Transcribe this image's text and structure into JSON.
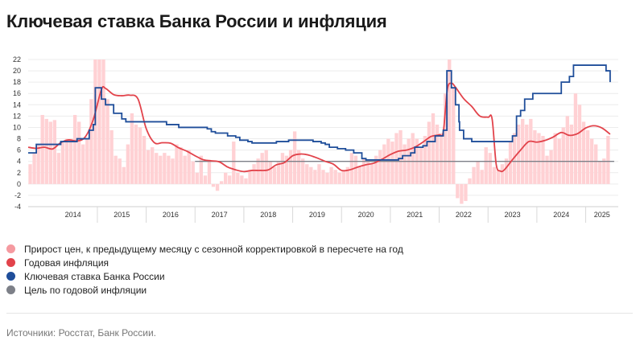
{
  "title": "Ключевая ставка Банка России и инфляция",
  "colors": {
    "mom": "#ffd1d4",
    "yoy": "#e2434b",
    "key_rate": "#1f4e9a",
    "target": "#7d8088",
    "legend_mom": "#f59aa0"
  },
  "legend": [
    {
      "label": "Прирост цен, к предыдущему месяцу с сезонной корректировкой в пересчете на год",
      "color": "#f59aa0"
    },
    {
      "label": "Годовая инфляция",
      "color": "#e2434b"
    },
    {
      "label": "Ключевая ставка Банка России",
      "color": "#1f4e9a"
    },
    {
      "label": "Цель по годовой инфляции",
      "color": "#7d8088"
    }
  ],
  "source": "Источники: Росстат, Банк России.",
  "chart_data": {
    "type": "line",
    "title": "Ключевая ставка Банка России и инфляция",
    "x_period": "2013-08 to 2025-05",
    "x_ticks": [
      "2014",
      "2015",
      "2016",
      "2017",
      "2018",
      "2019",
      "2020",
      "2021",
      "2022",
      "2023",
      "2024",
      "2025"
    ],
    "y_ticks": [
      "-4",
      "-2",
      "0",
      "2",
      "4",
      "6",
      "8",
      "10",
      "12",
      "14",
      "16",
      "18",
      "20",
      "22"
    ],
    "ylim": [
      -4,
      22
    ],
    "grid": "horizontal",
    "series": [
      {
        "name": "Прирост цен, к предыдущему месяцу с сезонной корректировкой в пересчете на год",
        "type": "bar",
        "color": "#ffd1d4",
        "points": [
          [
            "2013-08",
            3.5
          ],
          [
            "2013-09",
            5.5
          ],
          [
            "2013-10",
            7.0
          ],
          [
            "2013-11",
            12.2
          ],
          [
            "2013-12",
            11.5
          ],
          [
            "2014-01",
            11.0
          ],
          [
            "2014-02",
            11.3
          ],
          [
            "2014-03",
            5.5
          ],
          [
            "2014-04",
            7.5
          ],
          [
            "2014-05",
            8.0
          ],
          [
            "2014-06",
            8.0
          ],
          [
            "2014-07",
            12.2
          ],
          [
            "2014-08",
            11.0
          ],
          [
            "2014-09",
            7.0
          ],
          [
            "2014-10",
            8.0
          ],
          [
            "2014-11",
            15.0
          ],
          [
            "2014-12",
            22.0
          ],
          [
            "2015-01",
            22.0
          ],
          [
            "2015-02",
            22.0
          ],
          [
            "2015-03",
            15.0
          ],
          [
            "2015-04",
            9.5
          ],
          [
            "2015-05",
            5.0
          ],
          [
            "2015-06",
            4.5
          ],
          [
            "2015-07",
            3.0
          ],
          [
            "2015-08",
            7.0
          ],
          [
            "2015-09",
            12.5
          ],
          [
            "2015-10",
            10.5
          ],
          [
            "2015-11",
            10.0
          ],
          [
            "2015-12",
            8.5
          ],
          [
            "2016-01",
            6.0
          ],
          [
            "2016-02",
            6.5
          ],
          [
            "2016-03",
            5.5
          ],
          [
            "2016-04",
            5.0
          ],
          [
            "2016-05",
            5.5
          ],
          [
            "2016-06",
            5.0
          ],
          [
            "2016-07",
            4.5
          ],
          [
            "2016-08",
            7.0
          ],
          [
            "2016-09",
            6.5
          ],
          [
            "2016-10",
            5.0
          ],
          [
            "2016-11",
            6.0
          ],
          [
            "2016-12",
            4.0
          ],
          [
            "2017-01",
            2.0
          ],
          [
            "2017-02",
            5.0
          ],
          [
            "2017-03",
            1.5
          ],
          [
            "2017-04",
            4.0
          ],
          [
            "2017-05",
            -0.5
          ],
          [
            "2017-06",
            -1.2
          ],
          [
            "2017-07",
            0.5
          ],
          [
            "2017-08",
            2.0
          ],
          [
            "2017-09",
            1.5
          ],
          [
            "2017-10",
            7.5
          ],
          [
            "2017-11",
            2.0
          ],
          [
            "2017-12",
            1.5
          ],
          [
            "2018-01",
            1.0
          ],
          [
            "2018-02",
            2.5
          ],
          [
            "2018-03",
            3.5
          ],
          [
            "2018-04",
            4.5
          ],
          [
            "2018-05",
            5.5
          ],
          [
            "2018-06",
            6.0
          ],
          [
            "2018-07",
            4.0
          ],
          [
            "2018-08",
            3.0
          ],
          [
            "2018-09",
            4.0
          ],
          [
            "2018-10",
            5.5
          ],
          [
            "2018-11",
            5.0
          ],
          [
            "2018-12",
            6.0
          ],
          [
            "2019-01",
            9.3
          ],
          [
            "2019-02",
            6.0
          ],
          [
            "2019-03",
            4.5
          ],
          [
            "2019-04",
            3.5
          ],
          [
            "2019-05",
            3.0
          ],
          [
            "2019-06",
            2.5
          ],
          [
            "2019-07",
            3.5
          ],
          [
            "2019-08",
            2.5
          ],
          [
            "2019-09",
            2.0
          ],
          [
            "2019-10",
            3.0
          ],
          [
            "2019-11",
            2.5
          ],
          [
            "2019-12",
            2.0
          ],
          [
            "2020-01",
            2.5
          ],
          [
            "2020-02",
            3.0
          ],
          [
            "2020-03",
            5.5
          ],
          [
            "2020-04",
            5.0
          ],
          [
            "2020-05",
            3.0
          ],
          [
            "2020-06",
            4.5
          ],
          [
            "2020-07",
            4.0
          ],
          [
            "2020-08",
            3.5
          ],
          [
            "2020-09",
            5.0
          ],
          [
            "2020-10",
            6.0
          ],
          [
            "2020-11",
            7.0
          ],
          [
            "2020-12",
            8.0
          ],
          [
            "2021-01",
            7.5
          ],
          [
            "2021-02",
            9.0
          ],
          [
            "2021-03",
            9.5
          ],
          [
            "2021-04",
            7.0
          ],
          [
            "2021-05",
            8.0
          ],
          [
            "2021-06",
            9.0
          ],
          [
            "2021-07",
            8.0
          ],
          [
            "2021-08",
            6.5
          ],
          [
            "2021-09",
            8.5
          ],
          [
            "2021-10",
            11.0
          ],
          [
            "2021-11",
            12.5
          ],
          [
            "2021-12",
            10.5
          ],
          [
            "2022-01",
            9.0
          ],
          [
            "2022-02",
            16.0
          ],
          [
            "2022-03",
            22.0
          ],
          [
            "2022-04",
            17.0
          ],
          [
            "2022-05",
            -2.5
          ],
          [
            "2022-06",
            -3.5
          ],
          [
            "2022-07",
            -3.0
          ],
          [
            "2022-08",
            1.0
          ],
          [
            "2022-09",
            3.0
          ],
          [
            "2022-10",
            4.0
          ],
          [
            "2022-11",
            2.5
          ],
          [
            "2022-12",
            6.5
          ],
          [
            "2023-01",
            5.5
          ],
          [
            "2023-02",
            3.0
          ],
          [
            "2023-03",
            2.5
          ],
          [
            "2023-04",
            3.5
          ],
          [
            "2023-05",
            4.5
          ],
          [
            "2023-06",
            7.5
          ],
          [
            "2023-07",
            9.0
          ],
          [
            "2023-08",
            10.5
          ],
          [
            "2023-09",
            11.5
          ],
          [
            "2023-10",
            10.5
          ],
          [
            "2023-11",
            11.5
          ],
          [
            "2023-12",
            9.5
          ],
          [
            "2024-01",
            9.0
          ],
          [
            "2024-02",
            8.5
          ],
          [
            "2024-03",
            5.0
          ],
          [
            "2024-04",
            6.0
          ],
          [
            "2024-05",
            9.0
          ],
          [
            "2024-06",
            8.0
          ],
          [
            "2024-07",
            10.0
          ],
          [
            "2024-08",
            12.0
          ],
          [
            "2024-09",
            10.5
          ],
          [
            "2024-10",
            16.0
          ],
          [
            "2024-11",
            14.0
          ],
          [
            "2024-12",
            11.0
          ],
          [
            "2025-01",
            9.5
          ],
          [
            "2025-02",
            8.0
          ],
          [
            "2025-03",
            7.0
          ],
          [
            "2025-04",
            4.0
          ],
          [
            "2025-05",
            4.5
          ],
          [
            "2025-06",
            8.5
          ]
        ]
      },
      {
        "name": "Годовая инфляция",
        "type": "line",
        "color": "#e2434b",
        "points": [
          [
            "2013-08",
            6.5
          ],
          [
            "2013-10",
            6.3
          ],
          [
            "2013-12",
            6.5
          ],
          [
            "2014-02",
            6.2
          ],
          [
            "2014-04",
            7.3
          ],
          [
            "2014-06",
            7.8
          ],
          [
            "2014-08",
            7.6
          ],
          [
            "2014-10",
            8.3
          ],
          [
            "2014-12",
            11.4
          ],
          [
            "2015-02",
            16.7
          ],
          [
            "2015-03",
            16.9
          ],
          [
            "2015-05",
            15.8
          ],
          [
            "2015-07",
            15.6
          ],
          [
            "2015-09",
            15.7
          ],
          [
            "2015-11",
            15.0
          ],
          [
            "2016-01",
            9.8
          ],
          [
            "2016-03",
            7.3
          ],
          [
            "2016-05",
            7.3
          ],
          [
            "2016-07",
            7.2
          ],
          [
            "2016-09",
            6.4
          ],
          [
            "2016-11",
            5.8
          ],
          [
            "2017-01",
            5.0
          ],
          [
            "2017-03",
            4.3
          ],
          [
            "2017-05",
            4.1
          ],
          [
            "2017-07",
            3.9
          ],
          [
            "2017-09",
            3.0
          ],
          [
            "2017-11",
            2.5
          ],
          [
            "2018-01",
            2.2
          ],
          [
            "2018-03",
            2.4
          ],
          [
            "2018-05",
            2.4
          ],
          [
            "2018-07",
            2.5
          ],
          [
            "2018-09",
            3.4
          ],
          [
            "2018-11",
            3.8
          ],
          [
            "2019-01",
            5.0
          ],
          [
            "2019-03",
            5.3
          ],
          [
            "2019-05",
            5.1
          ],
          [
            "2019-07",
            4.6
          ],
          [
            "2019-09",
            4.0
          ],
          [
            "2019-11",
            3.5
          ],
          [
            "2020-01",
            2.4
          ],
          [
            "2020-03",
            2.5
          ],
          [
            "2020-05",
            3.0
          ],
          [
            "2020-07",
            3.4
          ],
          [
            "2020-09",
            3.7
          ],
          [
            "2020-11",
            4.4
          ],
          [
            "2021-01",
            5.2
          ],
          [
            "2021-03",
            5.8
          ],
          [
            "2021-05",
            6.0
          ],
          [
            "2021-07",
            6.5
          ],
          [
            "2021-09",
            7.4
          ],
          [
            "2021-11",
            8.4
          ],
          [
            "2022-01",
            8.7
          ],
          [
            "2022-02",
            9.2
          ],
          [
            "2022-03",
            16.7
          ],
          [
            "2022-04",
            17.8
          ],
          [
            "2022-05",
            17.1
          ],
          [
            "2022-07",
            15.1
          ],
          [
            "2022-09",
            13.7
          ],
          [
            "2022-11",
            12.0
          ],
          [
            "2023-01",
            11.8
          ],
          [
            "2023-02",
            11.5
          ],
          [
            "2023-03",
            3.5
          ],
          [
            "2023-04",
            2.3
          ],
          [
            "2023-05",
            2.5
          ],
          [
            "2023-07",
            4.3
          ],
          [
            "2023-09",
            6.0
          ],
          [
            "2023-11",
            7.5
          ],
          [
            "2024-01",
            7.4
          ],
          [
            "2024-03",
            7.7
          ],
          [
            "2024-05",
            8.3
          ],
          [
            "2024-07",
            9.1
          ],
          [
            "2024-09",
            8.6
          ],
          [
            "2024-11",
            8.9
          ],
          [
            "2025-01",
            9.9
          ],
          [
            "2025-03",
            10.3
          ],
          [
            "2025-05",
            9.9
          ],
          [
            "2025-07",
            8.8
          ]
        ]
      },
      {
        "name": "Ключевая ставка Банка России",
        "type": "step",
        "color": "#1f4e9a",
        "points": [
          [
            "2013-08",
            5.5
          ],
          [
            "2013-10",
            7.0
          ],
          [
            "2014-04",
            7.5
          ],
          [
            "2014-08",
            8.0
          ],
          [
            "2014-10",
            8.0
          ],
          [
            "2014-11",
            9.5
          ],
          [
            "2014-12",
            10.5
          ],
          [
            "2014-12-16",
            17.0
          ],
          [
            "2015-02",
            15.0
          ],
          [
            "2015-03",
            14.0
          ],
          [
            "2015-05",
            12.5
          ],
          [
            "2015-07",
            11.5
          ],
          [
            "2015-08",
            11.0
          ],
          [
            "2016-06",
            10.5
          ],
          [
            "2016-09",
            10.0
          ],
          [
            "2017-04",
            9.75
          ],
          [
            "2017-05",
            9.25
          ],
          [
            "2017-06",
            9.0
          ],
          [
            "2017-09",
            8.5
          ],
          [
            "2017-11",
            8.25
          ],
          [
            "2017-12",
            7.75
          ],
          [
            "2018-02",
            7.5
          ],
          [
            "2018-03",
            7.25
          ],
          [
            "2018-09",
            7.5
          ],
          [
            "2018-12",
            7.75
          ],
          [
            "2019-06",
            7.5
          ],
          [
            "2019-08",
            7.25
          ],
          [
            "2019-09",
            7.0
          ],
          [
            "2019-10",
            6.5
          ],
          [
            "2019-12",
            6.25
          ],
          [
            "2020-02",
            6.0
          ],
          [
            "2020-04",
            5.5
          ],
          [
            "2020-06",
            4.5
          ],
          [
            "2020-07",
            4.25
          ],
          [
            "2021-03",
            4.5
          ],
          [
            "2021-04",
            5.0
          ],
          [
            "2021-06",
            5.5
          ],
          [
            "2021-07",
            6.5
          ],
          [
            "2021-09",
            6.75
          ],
          [
            "2021-10",
            7.5
          ],
          [
            "2021-12",
            8.5
          ],
          [
            "2022-02",
            9.5
          ],
          [
            "2022-02-28",
            20.0
          ],
          [
            "2022-04",
            17.0
          ],
          [
            "2022-05",
            14.0
          ],
          [
            "2022-05-27",
            11.0
          ],
          [
            "2022-06",
            9.5
          ],
          [
            "2022-07",
            8.0
          ],
          [
            "2022-09",
            7.5
          ],
          [
            "2023-07",
            8.5
          ],
          [
            "2023-08",
            12.0
          ],
          [
            "2023-09",
            13.0
          ],
          [
            "2023-10",
            15.0
          ],
          [
            "2023-12",
            16.0
          ],
          [
            "2024-07",
            18.0
          ],
          [
            "2024-09",
            19.0
          ],
          [
            "2024-10",
            21.0
          ],
          [
            "2025-06",
            20.0
          ],
          [
            "2025-07",
            18.0
          ]
        ]
      },
      {
        "name": "Цель по годовой инфляции",
        "type": "line",
        "color": "#7d8088",
        "points": [
          [
            "2017-01",
            4.0
          ],
          [
            "2025-08",
            4.0
          ]
        ]
      }
    ]
  }
}
